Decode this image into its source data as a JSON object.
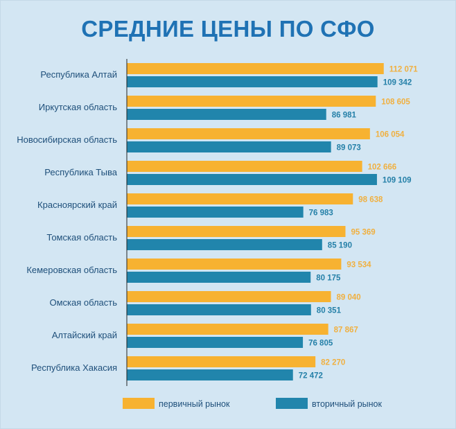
{
  "chart_data": {
    "type": "bar",
    "orientation": "horizontal",
    "title": "СРЕДНИЕ ЦЕНЫ ПО СФО",
    "categories": [
      "Республика Алтай",
      "Иркутская область",
      "Новосибирская область",
      "Республика Тыва",
      "Красноярский край",
      "Томская область",
      "Кемеровская область",
      "Омская область",
      "Алтайский край",
      "Республика Хакасия"
    ],
    "series": [
      {
        "name": "первичный рынок",
        "color": "#f7b231",
        "values": [
          112071,
          108605,
          106054,
          102666,
          98638,
          95369,
          93534,
          89040,
          87867,
          82270
        ],
        "labels": [
          "112 071",
          "108 605",
          "106 054",
          "102 666",
          "98 638",
          "95 369",
          "93 534",
          "89 040",
          "87 867",
          "82 270"
        ]
      },
      {
        "name": "вторичный рынок",
        "color": "#2185ac",
        "values": [
          109342,
          86981,
          89073,
          109109,
          76983,
          85190,
          80175,
          80351,
          76805,
          72472
        ],
        "labels": [
          "109 342",
          "86 981",
          "89 073",
          "109 109",
          "76 983",
          "85 190",
          "80 175",
          "80 351",
          "76 805",
          "72 472"
        ]
      }
    ],
    "xlim": [
      0,
      140000
    ],
    "grid": false,
    "legend_position": "bottom"
  }
}
